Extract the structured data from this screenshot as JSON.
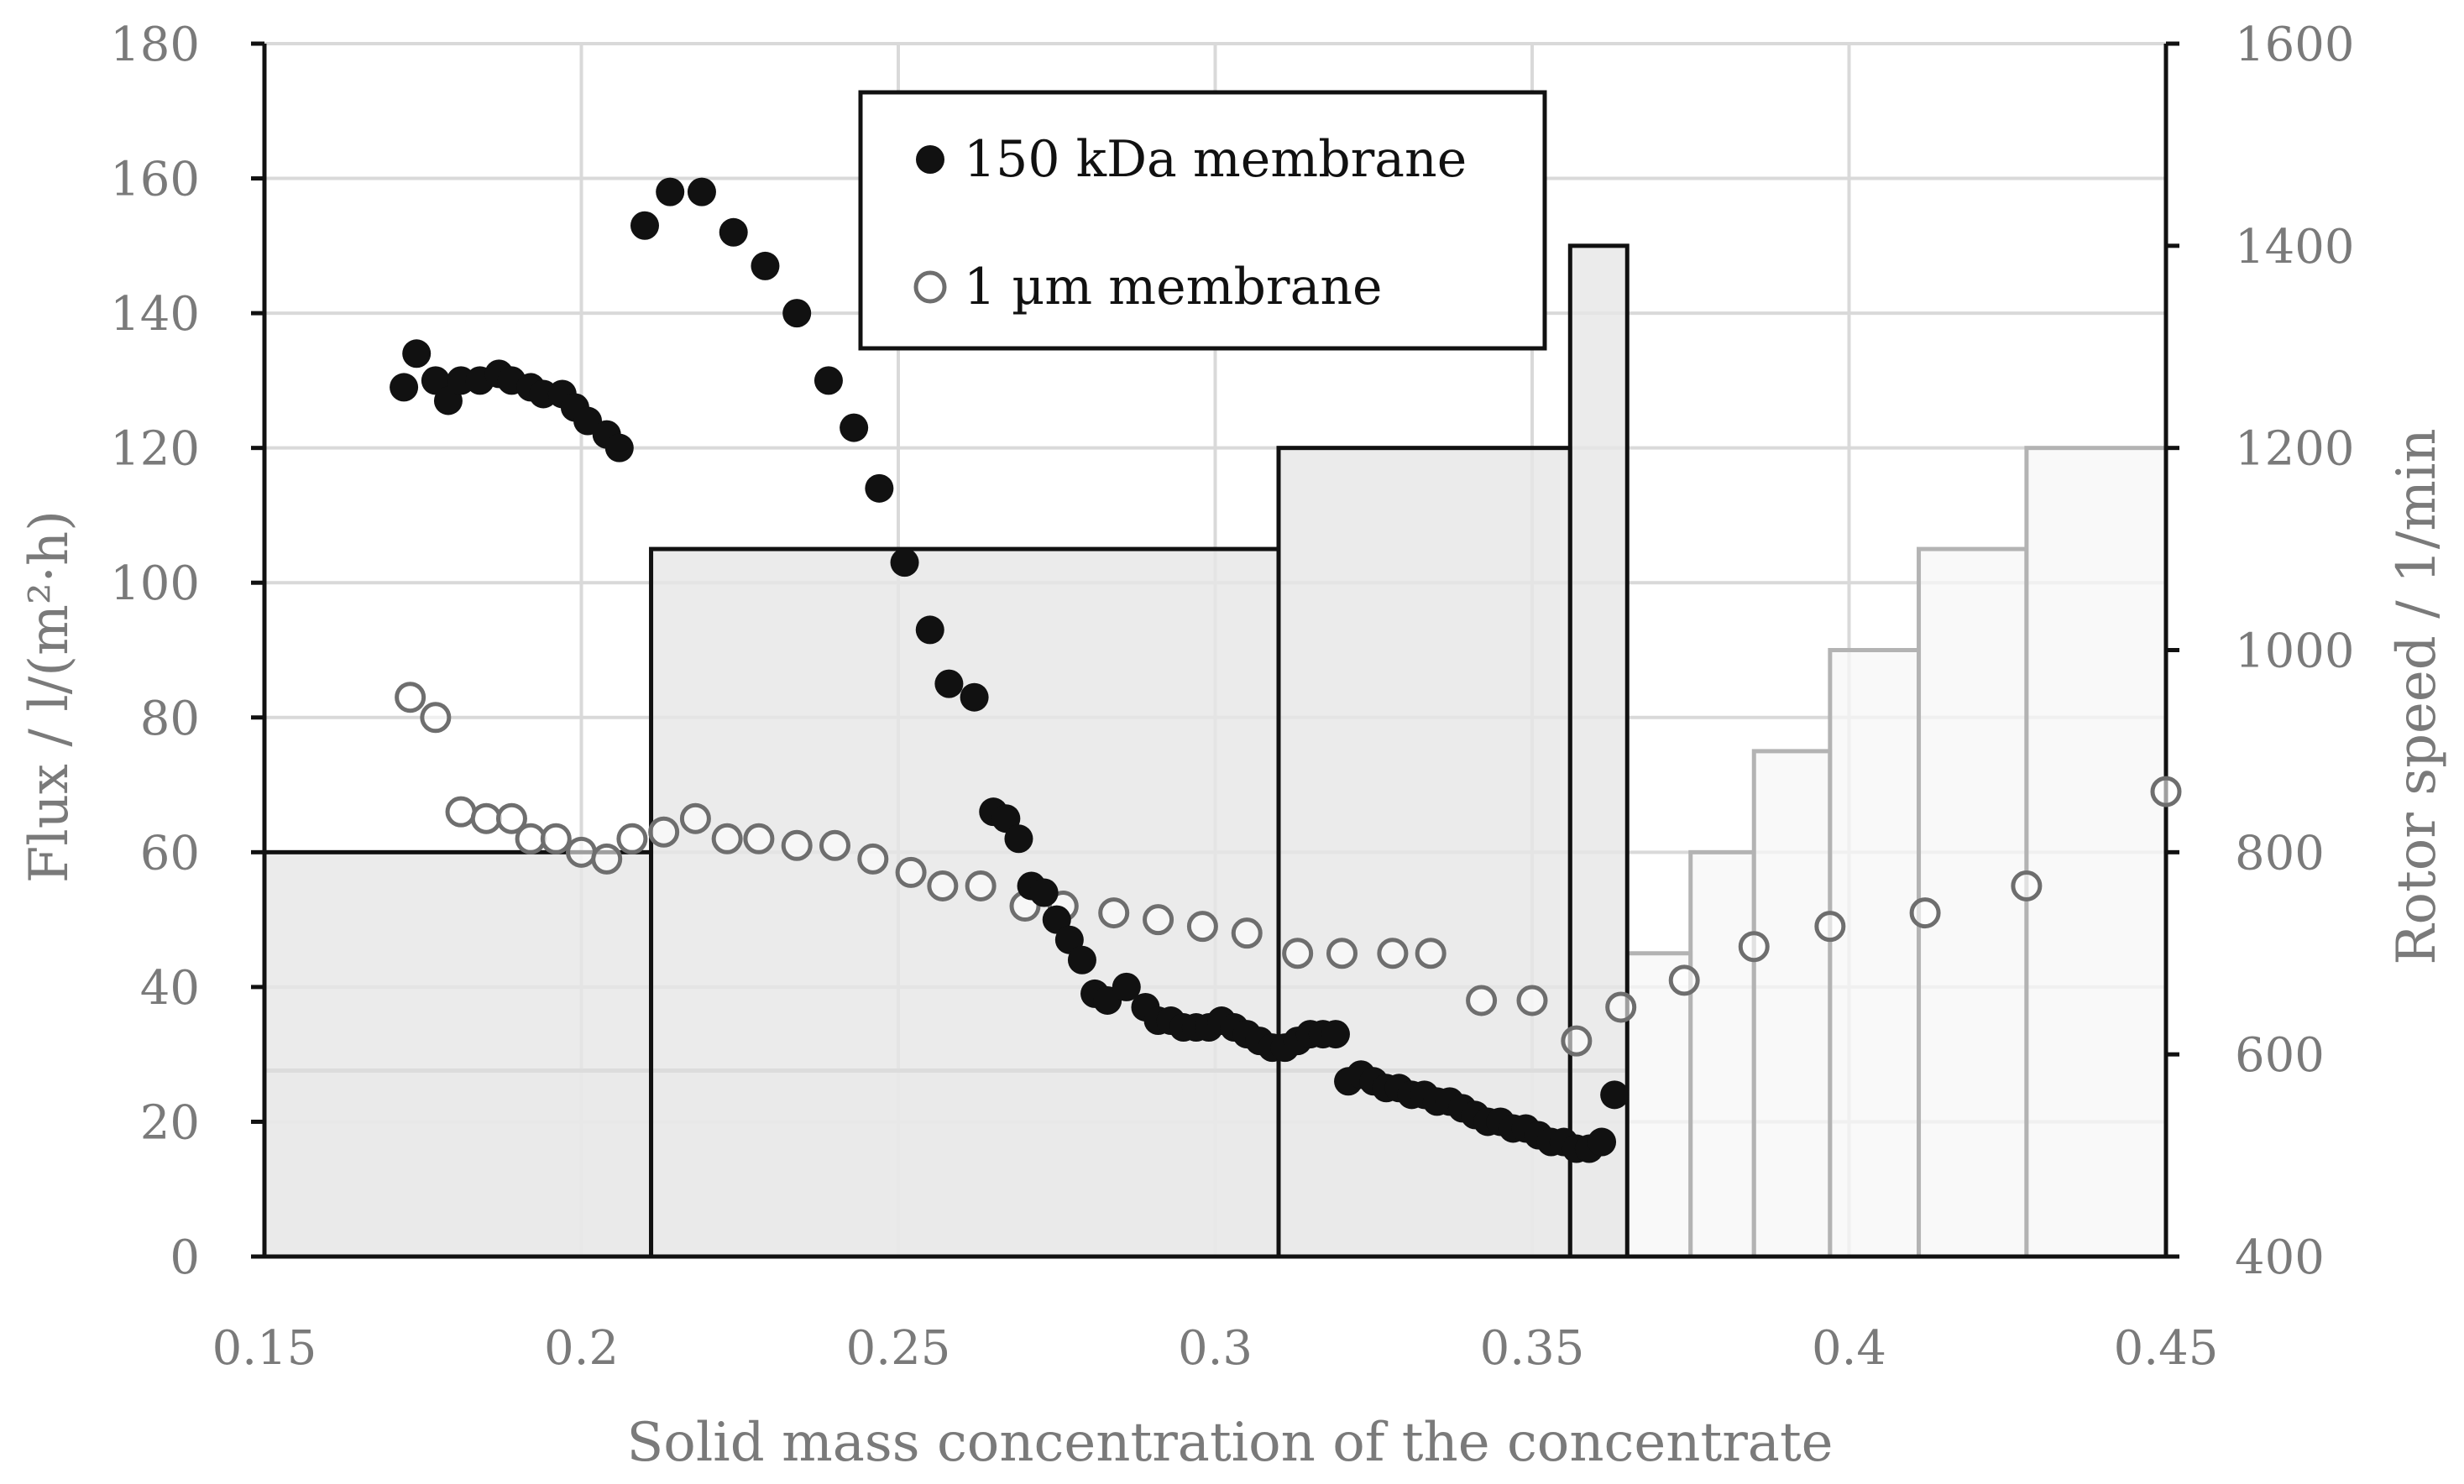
{
  "chart_data": {
    "type": "scatter",
    "title": "",
    "xlabel": "Solid mass concentration of the concentrate",
    "ylabel": "Flux / l/(m²·h)",
    "y2label": "Rotor speed / 1/min",
    "xlim": [
      0.15,
      0.45
    ],
    "ylim": [
      0,
      180
    ],
    "y2lim": [
      400,
      1600
    ],
    "x_ticks": [
      "0.15",
      "0.2",
      "0.25",
      "0.3",
      "0.35",
      "0.4",
      "0.45"
    ],
    "y_ticks": [
      "0",
      "20",
      "40",
      "60",
      "80",
      "100",
      "120",
      "140",
      "160",
      "180"
    ],
    "y2_ticks": [
      "400",
      "600",
      "800",
      "1000",
      "1200",
      "1400",
      "1600"
    ],
    "grid": true,
    "legend": {
      "placement": "top-center"
    },
    "series": [
      {
        "name": "150 kDa membrane",
        "marker": "filled-circle",
        "color": "#111111",
        "x": [
          0.172,
          0.174,
          0.177,
          0.179,
          0.181,
          0.184,
          0.187,
          0.189,
          0.192,
          0.194,
          0.197,
          0.199,
          0.201,
          0.204,
          0.206,
          0.21,
          0.214,
          0.219,
          0.224,
          0.229,
          0.234,
          0.239,
          0.243,
          0.247,
          0.251,
          0.255,
          0.258,
          0.262,
          0.265,
          0.267,
          0.269,
          0.271,
          0.273,
          0.275,
          0.277,
          0.279,
          0.281,
          0.283,
          0.286,
          0.289,
          0.291,
          0.293,
          0.295,
          0.297,
          0.299,
          0.301,
          0.303,
          0.305,
          0.307,
          0.309,
          0.311,
          0.313,
          0.315,
          0.317,
          0.319,
          0.321,
          0.323,
          0.325,
          0.327,
          0.329,
          0.331,
          0.333,
          0.335,
          0.337,
          0.339,
          0.341,
          0.343,
          0.345,
          0.347,
          0.349,
          0.351,
          0.353,
          0.355,
          0.357,
          0.359,
          0.361,
          0.363
        ],
        "y": [
          129,
          134,
          130,
          127,
          130,
          130,
          131,
          130,
          129,
          128,
          128,
          126,
          124,
          122,
          120,
          153,
          158,
          158,
          152,
          147,
          140,
          130,
          123,
          114,
          103,
          93,
          85,
          83,
          66,
          65,
          62,
          55,
          54,
          50,
          47,
          44,
          39,
          38,
          40,
          37,
          35,
          35,
          34,
          34,
          34,
          35,
          34,
          33,
          32,
          31,
          31,
          32,
          33,
          33,
          33,
          26,
          27,
          26,
          25,
          25,
          24,
          24,
          23,
          23,
          22,
          21,
          20,
          20,
          19,
          19,
          18,
          17,
          17,
          16,
          16,
          17,
          24
        ]
      },
      {
        "name": "1 µm membrane",
        "marker": "open-circle",
        "color": "#6e6e6e",
        "x": [
          0.173,
          0.177,
          0.181,
          0.185,
          0.189,
          0.192,
          0.196,
          0.2,
          0.204,
          0.208,
          0.213,
          0.218,
          0.223,
          0.228,
          0.234,
          0.24,
          0.246,
          0.252,
          0.257,
          0.263,
          0.27,
          0.276,
          0.284,
          0.291,
          0.298,
          0.305,
          0.313,
          0.32,
          0.328,
          0.334,
          0.342,
          0.35,
          0.357,
          0.364,
          0.374,
          0.385,
          0.397,
          0.412,
          0.428,
          0.45
        ],
        "y": [
          83,
          80,
          66,
          65,
          65,
          62,
          62,
          60,
          59,
          62,
          63,
          65,
          62,
          62,
          61,
          61,
          59,
          57,
          55,
          55,
          52,
          52,
          51,
          50,
          49,
          48,
          45,
          45,
          45,
          45,
          38,
          38,
          32,
          37,
          41,
          46,
          49,
          51,
          55,
          69
        ]
      }
    ],
    "rotor_speed_steps": {
      "membrane_150kDa": [
        {
          "x_start": 0.15,
          "x_end": 0.211,
          "rpm": 800
        },
        {
          "x_start": 0.211,
          "x_end": 0.31,
          "rpm": 1100
        },
        {
          "x_start": 0.31,
          "x_end": 0.356,
          "rpm": 1200
        },
        {
          "x_start": 0.356,
          "x_end": 0.365,
          "rpm": 1400
        }
      ],
      "membrane_1um": [
        {
          "x_start": 0.15,
          "x_end": 0.211,
          "rpm": 584
        },
        {
          "x_start": 0.211,
          "x_end": 0.31,
          "rpm": 584
        },
        {
          "x_start": 0.31,
          "x_end": 0.356,
          "rpm": 584
        },
        {
          "x_start": 0.356,
          "x_end": 0.365,
          "rpm": 584
        },
        {
          "x_start": 0.365,
          "x_end": 0.375,
          "rpm": 700
        },
        {
          "x_start": 0.375,
          "x_end": 0.385,
          "rpm": 800
        },
        {
          "x_start": 0.385,
          "x_end": 0.397,
          "rpm": 900
        },
        {
          "x_start": 0.397,
          "x_end": 0.411,
          "rpm": 1000
        },
        {
          "x_start": 0.411,
          "x_end": 0.428,
          "rpm": 1100
        },
        {
          "x_start": 0.428,
          "x_end": 0.45,
          "rpm": 1200
        }
      ]
    }
  }
}
